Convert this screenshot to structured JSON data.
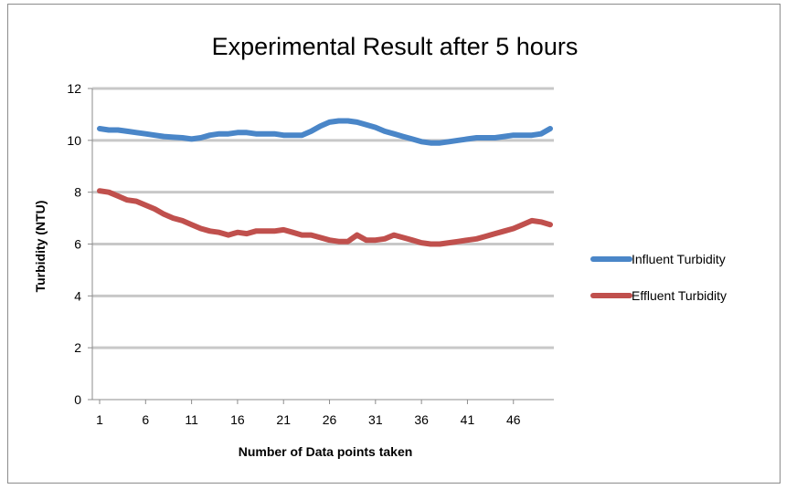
{
  "chart_data": {
    "type": "line",
    "title": "Experimental Result after 5 hours",
    "xlabel": "Number of Data points taken",
    "ylabel": "Turbidity (NTU)",
    "xlim": [
      1,
      50
    ],
    "ylim": [
      0,
      12
    ],
    "x_ticks": [
      "1",
      "6",
      "11",
      "16",
      "21",
      "26",
      "31",
      "36",
      "41",
      "46"
    ],
    "y_ticks": [
      "0",
      "2",
      "4",
      "6",
      "8",
      "10",
      "12"
    ],
    "grid": true,
    "legend_position": "right",
    "x": [
      1,
      2,
      3,
      4,
      5,
      6,
      7,
      8,
      9,
      10,
      11,
      12,
      13,
      14,
      15,
      16,
      17,
      18,
      19,
      20,
      21,
      22,
      23,
      24,
      25,
      26,
      27,
      28,
      29,
      30,
      31,
      32,
      33,
      34,
      35,
      36,
      37,
      38,
      39,
      40,
      41,
      42,
      43,
      44,
      45,
      46,
      47,
      48,
      49,
      50
    ],
    "series": [
      {
        "name": "Influent Turbidity",
        "color": "#4a86c8",
        "values": [
          10.45,
          10.4,
          10.4,
          10.35,
          10.3,
          10.25,
          10.2,
          10.15,
          10.12,
          10.1,
          10.05,
          10.1,
          10.2,
          10.25,
          10.25,
          10.3,
          10.3,
          10.25,
          10.25,
          10.25,
          10.2,
          10.2,
          10.2,
          10.35,
          10.55,
          10.7,
          10.75,
          10.75,
          10.7,
          10.6,
          10.5,
          10.35,
          10.25,
          10.15,
          10.05,
          9.95,
          9.9,
          9.9,
          9.95,
          10.0,
          10.05,
          10.1,
          10.1,
          10.1,
          10.15,
          10.2,
          10.2,
          10.2,
          10.25,
          10.45
        ]
      },
      {
        "name": "Effluent Turbidity",
        "color": "#c0504d",
        "values": [
          8.05,
          8.0,
          7.85,
          7.7,
          7.65,
          7.5,
          7.35,
          7.15,
          7.0,
          6.9,
          6.75,
          6.6,
          6.5,
          6.45,
          6.35,
          6.45,
          6.4,
          6.5,
          6.5,
          6.5,
          6.55,
          6.45,
          6.35,
          6.35,
          6.25,
          6.15,
          6.1,
          6.1,
          6.35,
          6.15,
          6.15,
          6.2,
          6.35,
          6.25,
          6.15,
          6.05,
          6.0,
          6.0,
          6.05,
          6.1,
          6.15,
          6.2,
          6.3,
          6.4,
          6.5,
          6.6,
          6.75,
          6.9,
          6.85,
          6.75
        ]
      }
    ]
  }
}
